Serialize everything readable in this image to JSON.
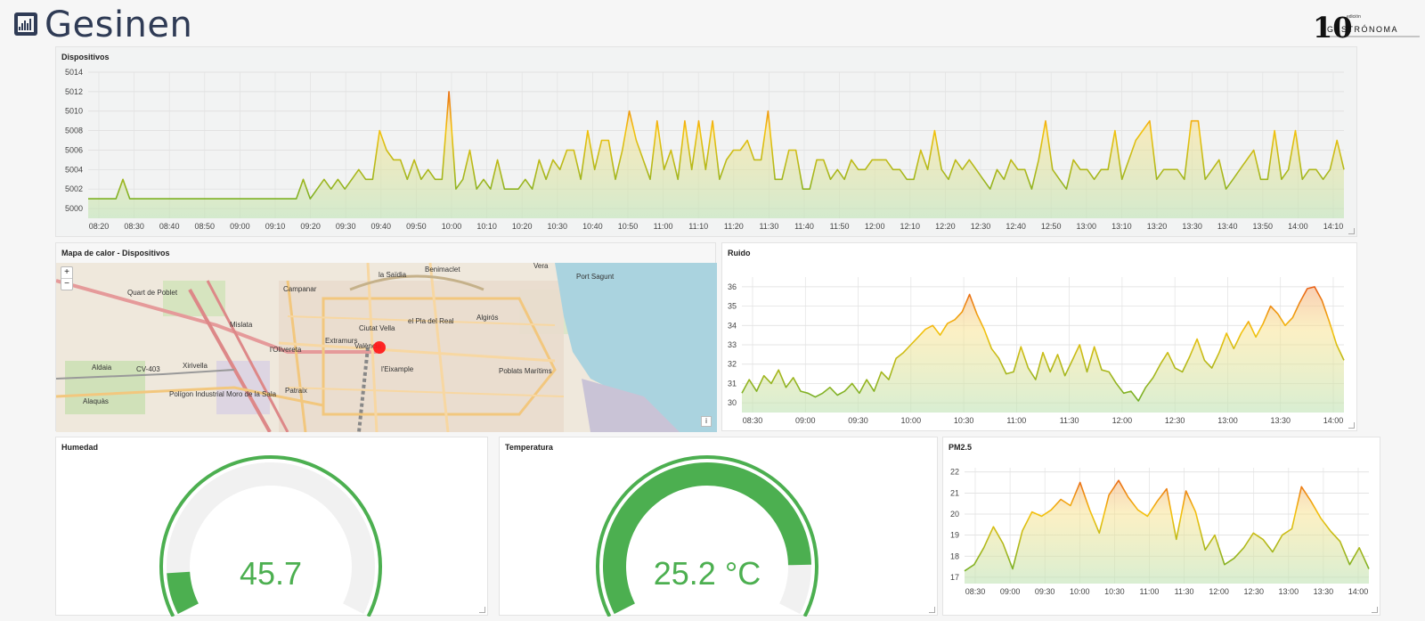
{
  "header": {
    "brand_name": "Gesinen",
    "partner_number": "10",
    "partner_small": "edición",
    "partner_name": "GASTRÓNOMA"
  },
  "panels": {
    "dispositivos_title": "Dispositivos",
    "mapa_title": "Mapa de calor - Dispositivos",
    "ruido_title": "Ruido",
    "humedad_title": "Humedad",
    "temperatura_title": "Temperatura",
    "pm25_title": "PM2.5"
  },
  "map": {
    "zoom_in": "+",
    "zoom_out": "−",
    "attribution": "i",
    "labels": [
      "Benimaclet",
      "Vera",
      "la Saïdia",
      "Quart de Poblet",
      "Campanar",
      "Mislata",
      "Ciutat Vella",
      "el Pla del Real",
      "Algirós",
      "Extramurs",
      "València",
      "l'Olivereta",
      "l'Eixample",
      "Poblats Marítims",
      "Aldaia",
      "CV-403",
      "Xirivella",
      "Polígon Industrial Moro de la Sala",
      "Patraix",
      "Alaquàs",
      "Port Sagunt"
    ],
    "marker_color": "#ff1a1a"
  },
  "gauges": {
    "humedad": {
      "value": 45.7,
      "display": "45.7",
      "fraction": 0.1
    },
    "temperatura": {
      "value": 25.2,
      "display": "25.2 °C",
      "fraction": 0.88
    }
  },
  "colors": {
    "green": "#4caf50",
    "track": "#f1f1f1"
  },
  "chart_data": [
    {
      "type": "area",
      "title": "Dispositivos",
      "ylim": [
        4999,
        5014
      ],
      "yticks": [
        5000,
        5002,
        5004,
        5006,
        5008,
        5010,
        5012,
        5014
      ],
      "xticks": [
        "08:20",
        "08:30",
        "08:40",
        "08:50",
        "09:00",
        "09:10",
        "09:20",
        "09:30",
        "09:40",
        "09:50",
        "10:00",
        "10:10",
        "10:20",
        "10:30",
        "10:40",
        "10:50",
        "11:00",
        "11:10",
        "11:20",
        "11:30",
        "11:40",
        "11:50",
        "12:00",
        "12:10",
        "12:20",
        "12:30",
        "12:40",
        "12:50",
        "13:00",
        "13:10",
        "13:20",
        "13:30",
        "13:40",
        "13:50",
        "14:00",
        "14:10"
      ],
      "values": [
        5001,
        5001,
        5001,
        5001,
        5001,
        5003,
        5001,
        5001,
        5001,
        5001,
        5001,
        5001,
        5001,
        5001,
        5001,
        5001,
        5001,
        5001,
        5001,
        5001,
        5001,
        5001,
        5001,
        5001,
        5001,
        5001,
        5001,
        5001,
        5001,
        5001,
        5001,
        5003,
        5001,
        5002,
        5003,
        5002,
        5003,
        5002,
        5003,
        5004,
        5003,
        5003,
        5008,
        5006,
        5005,
        5005,
        5003,
        5005,
        5003,
        5004,
        5003,
        5003,
        5012,
        5002,
        5003,
        5006,
        5002,
        5003,
        5002,
        5005,
        5002,
        5002,
        5002,
        5003,
        5002,
        5005,
        5003,
        5005,
        5004,
        5006,
        5006,
        5003,
        5008,
        5004,
        5007,
        5007,
        5003,
        5006,
        5010,
        5007,
        5005,
        5003,
        5009,
        5004,
        5006,
        5003,
        5009,
        5004,
        5009,
        5004,
        5009,
        5003,
        5005,
        5006,
        5006,
        5007,
        5005,
        5005,
        5010,
        5003,
        5003,
        5006,
        5006,
        5002,
        5002,
        5005,
        5005,
        5003,
        5004,
        5003,
        5005,
        5004,
        5004,
        5005,
        5005,
        5005,
        5004,
        5004,
        5003,
        5003,
        5006,
        5004,
        5008,
        5004,
        5003,
        5005,
        5004,
        5005,
        5004,
        5003,
        5002,
        5004,
        5003,
        5005,
        5004,
        5004,
        5002,
        5005,
        5009,
        5004,
        5003,
        5002,
        5005,
        5004,
        5004,
        5003,
        5004,
        5004,
        5008,
        5003,
        5005,
        5007,
        5008,
        5009,
        5003,
        5004,
        5004,
        5004,
        5003,
        5009,
        5009,
        5003,
        5004,
        5005,
        5002,
        5003,
        5004,
        5005,
        5006,
        5003,
        5003,
        5008,
        5003,
        5004,
        5008,
        5003,
        5004,
        5004,
        5003,
        5004,
        5007,
        5004
      ]
    },
    {
      "type": "area",
      "title": "Ruido",
      "ylim": [
        29.5,
        36.5
      ],
      "yticks": [
        30,
        31,
        32,
        33,
        34,
        35,
        36
      ],
      "xticks": [
        "08:30",
        "09:00",
        "09:30",
        "10:00",
        "10:30",
        "11:00",
        "11:30",
        "12:00",
        "12:30",
        "13:00",
        "13:30",
        "14:00"
      ],
      "values": [
        30.5,
        31.2,
        30.6,
        31.4,
        31.0,
        31.7,
        30.8,
        31.3,
        30.6,
        30.5,
        30.3,
        30.5,
        30.8,
        30.4,
        30.6,
        31.0,
        30.5,
        31.2,
        30.6,
        31.6,
        31.2,
        32.3,
        32.6,
        33.0,
        33.4,
        33.8,
        34.0,
        33.5,
        34.1,
        34.3,
        34.7,
        35.6,
        34.6,
        33.8,
        32.8,
        32.3,
        31.5,
        31.6,
        32.9,
        31.8,
        31.2,
        32.6,
        31.6,
        32.5,
        31.4,
        32.2,
        33.0,
        31.6,
        32.9,
        31.7,
        31.6,
        31.0,
        30.5,
        30.6,
        30.1,
        30.8,
        31.3,
        32.0,
        32.6,
        31.8,
        31.6,
        32.4,
        33.3,
        32.2,
        31.8,
        32.6,
        33.6,
        32.8,
        33.6,
        34.2,
        33.4,
        34.1,
        35.0,
        34.6,
        34.0,
        34.4,
        35.2,
        35.9,
        36.0,
        35.3,
        34.2,
        33.0,
        32.2
      ]
    },
    {
      "type": "area",
      "title": "PM2.5",
      "ylim": [
        16.7,
        22.2
      ],
      "yticks": [
        17,
        18,
        19,
        20,
        21,
        22
      ],
      "xticks": [
        "08:30",
        "09:00",
        "09:30",
        "10:00",
        "10:30",
        "11:00",
        "11:30",
        "12:00",
        "12:30",
        "13:00",
        "13:30",
        "14:00"
      ],
      "values": [
        17.3,
        17.6,
        18.4,
        19.4,
        18.6,
        17.4,
        19.2,
        20.1,
        19.9,
        20.2,
        20.7,
        20.4,
        21.5,
        20.2,
        19.1,
        20.9,
        21.6,
        20.8,
        20.2,
        19.9,
        20.6,
        21.2,
        18.8,
        21.1,
        20.1,
        18.3,
        19.0,
        17.6,
        17.9,
        18.4,
        19.1,
        18.8,
        18.2,
        19.0,
        19.3,
        21.3,
        20.6,
        19.8,
        19.2,
        18.7,
        17.6,
        18.4,
        17.4
      ]
    }
  ]
}
